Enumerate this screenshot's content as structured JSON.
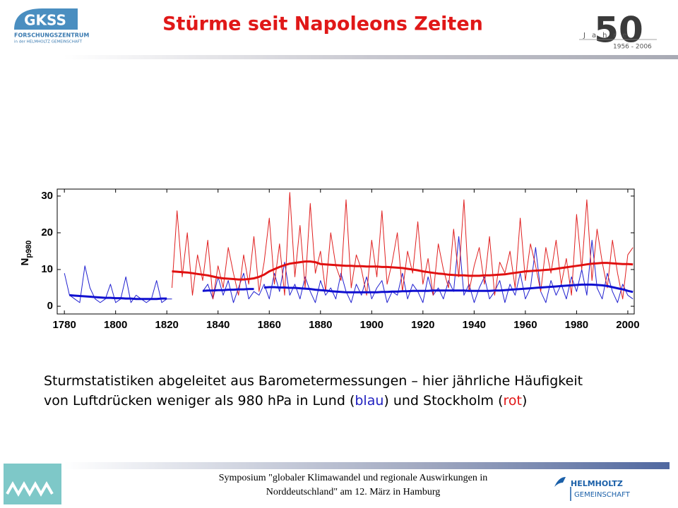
{
  "header": {
    "title": "Stürme seit Napoleons Zeiten",
    "logo_left": {
      "name": "GKSS",
      "line1": "FORSCHUNGSZENTRUM",
      "line2": "in der HELMHOLTZ GEMEINSCHAFT"
    },
    "logo_right": {
      "number": "50",
      "word": "Jahre",
      "years": "1956 - 2006"
    }
  },
  "chart_data": {
    "type": "line",
    "ylabel": "N",
    "ylabel_subscript": "p980",
    "x": [
      1780,
      1782,
      1784,
      1786,
      1788,
      1790,
      1792,
      1794,
      1796,
      1798,
      1800,
      1802,
      1804,
      1806,
      1808,
      1810,
      1812,
      1814,
      1816,
      1818,
      1820,
      1822,
      1824,
      1826,
      1828,
      1830,
      1832,
      1834,
      1836,
      1838,
      1840,
      1842,
      1844,
      1846,
      1848,
      1850,
      1852,
      1854,
      1856,
      1858,
      1860,
      1862,
      1864,
      1866,
      1868,
      1870,
      1872,
      1874,
      1876,
      1878,
      1880,
      1882,
      1884,
      1886,
      1888,
      1890,
      1892,
      1894,
      1896,
      1898,
      1900,
      1902,
      1904,
      1906,
      1908,
      1910,
      1912,
      1914,
      1916,
      1918,
      1920,
      1922,
      1924,
      1926,
      1928,
      1930,
      1932,
      1934,
      1936,
      1938,
      1940,
      1942,
      1944,
      1946,
      1948,
      1950,
      1952,
      1954,
      1956,
      1958,
      1960,
      1962,
      1964,
      1966,
      1968,
      1970,
      1972,
      1974,
      1976,
      1978,
      1980,
      1982,
      1984,
      1986,
      1988,
      1990,
      1992,
      1994,
      1996,
      1998,
      2000,
      2002
    ],
    "series": [
      {
        "color": "#2020d0",
        "width": 1,
        "values": [
          9,
          3,
          2,
          1,
          11,
          5,
          2,
          1,
          2,
          6,
          1,
          2,
          8,
          1,
          3,
          2,
          1,
          2,
          7,
          1,
          2,
          2,
          null,
          null,
          null,
          null,
          null,
          4,
          6,
          2,
          8,
          3,
          7,
          1,
          5,
          9,
          2,
          4,
          3,
          6,
          2,
          9,
          4,
          12,
          3,
          6,
          2,
          8,
          4,
          1,
          7,
          3,
          5,
          2,
          9,
          4,
          1,
          6,
          3,
          8,
          2,
          5,
          7,
          1,
          4,
          3,
          9,
          2,
          6,
          4,
          1,
          8,
          3,
          5,
          2,
          7,
          4,
          19,
          3,
          6,
          1,
          5,
          8,
          2,
          4,
          7,
          1,
          6,
          3,
          9,
          2,
          5,
          16,
          4,
          1,
          7,
          3,
          6,
          2,
          8,
          4,
          10,
          3,
          18,
          5,
          2,
          9,
          4,
          1,
          6,
          3,
          2
        ]
      },
      {
        "color": "#e02020",
        "width": 1,
        "values": [
          null,
          null,
          null,
          null,
          null,
          null,
          null,
          null,
          null,
          null,
          null,
          null,
          null,
          null,
          null,
          null,
          null,
          null,
          null,
          null,
          null,
          5,
          26,
          8,
          20,
          3,
          14,
          7,
          18,
          2,
          11,
          5,
          16,
          9,
          3,
          14,
          6,
          19,
          4,
          12,
          24,
          6,
          17,
          3,
          31,
          8,
          22,
          5,
          28,
          9,
          15,
          4,
          20,
          11,
          7,
          29,
          5,
          14,
          10,
          3,
          18,
          8,
          26,
          6,
          12,
          20,
          4,
          15,
          9,
          23,
          6,
          13,
          3,
          17,
          10,
          5,
          21,
          8,
          29,
          4,
          11,
          16,
          6,
          19,
          3,
          12,
          9,
          15,
          5,
          24,
          7,
          17,
          11,
          4,
          16,
          9,
          18,
          6,
          13,
          3,
          25,
          10,
          29,
          7,
          21,
          12,
          5,
          18,
          9,
          2,
          14,
          16
        ]
      },
      {
        "color": "#1010d0",
        "width": 3,
        "values": [
          null,
          3.0,
          2.9,
          2.8,
          2.7,
          2.6,
          2.5,
          2.4,
          2.3,
          2.3,
          2.2,
          2.2,
          2.1,
          2.1,
          2.0,
          2.0,
          2.0,
          2.0,
          2.0,
          2.1,
          2.1,
          null,
          null,
          null,
          null,
          null,
          null,
          4.2,
          4.3,
          4.3,
          4.4,
          4.4,
          4.5,
          4.5,
          4.6,
          4.6,
          4.7,
          4.7,
          null,
          5.1,
          5.2,
          5.2,
          5.1,
          5.1,
          5.0,
          5.0,
          4.9,
          4.8,
          4.7,
          4.5,
          4.4,
          4.3,
          4.1,
          4.0,
          3.9,
          3.8,
          3.8,
          3.8,
          3.8,
          3.8,
          3.8,
          3.8,
          3.9,
          3.9,
          4.0,
          4.0,
          4.1,
          4.1,
          4.2,
          4.2,
          4.2,
          4.2,
          4.3,
          4.3,
          4.3,
          4.3,
          4.3,
          4.3,
          4.3,
          4.2,
          4.2,
          4.2,
          4.2,
          4.2,
          4.3,
          4.3,
          4.4,
          4.5,
          4.6,
          4.7,
          4.8,
          4.9,
          5.0,
          5.1,
          5.2,
          5.3,
          5.4,
          5.5,
          5.6,
          5.7,
          5.8,
          5.9,
          5.9,
          5.9,
          5.8,
          5.7,
          5.5,
          5.2,
          4.9,
          4.6,
          4.2,
          3.9
        ]
      },
      {
        "color": "#e01010",
        "width": 3,
        "values": [
          null,
          null,
          null,
          null,
          null,
          null,
          null,
          null,
          null,
          null,
          null,
          null,
          null,
          null,
          null,
          null,
          null,
          null,
          null,
          null,
          null,
          9.5,
          9.4,
          9.3,
          9.2,
          9.0,
          8.8,
          8.6,
          8.4,
          8.1,
          7.8,
          7.6,
          7.5,
          7.4,
          7.3,
          7.3,
          7.4,
          7.6,
          8.0,
          8.6,
          9.5,
          10.1,
          10.7,
          11.2,
          11.6,
          11.8,
          12.0,
          12.2,
          12.2,
          12.0,
          11.5,
          11.4,
          11.3,
          11.2,
          11.1,
          11.0,
          11.0,
          10.9,
          10.9,
          10.8,
          10.8,
          10.8,
          10.7,
          10.7,
          10.6,
          10.5,
          10.4,
          10.2,
          10.0,
          9.8,
          9.5,
          9.3,
          9.1,
          8.9,
          8.8,
          8.6,
          8.5,
          8.4,
          8.4,
          8.3,
          8.3,
          8.3,
          8.4,
          8.4,
          8.5,
          8.6,
          8.7,
          8.9,
          9.1,
          9.3,
          9.5,
          9.6,
          9.7,
          9.8,
          9.9,
          10.0,
          10.2,
          10.4,
          10.6,
          10.8,
          11.0,
          11.2,
          11.4,
          11.6,
          11.7,
          11.8,
          11.8,
          11.7,
          11.6,
          11.5,
          11.5,
          11.4
        ]
      }
    ],
    "xlim": [
      1777.2,
      2002.5
    ],
    "ylim": [
      -2.1,
      31.9
    ],
    "xticks": [
      1780,
      1800,
      1820,
      1840,
      1860,
      1880,
      1900,
      1920,
      1940,
      1960,
      1980,
      2000
    ],
    "yticks": [
      0,
      10,
      20,
      30
    ]
  },
  "caption": [
    "Sturmstatistiken abgeleitet aus Barometermessungen – hier jährliche Häufigkeit von Luftdrücken weniger als 980 hPa in Lund (",
    "blau",
    ") und Stockholm (",
    "rot",
    ")"
  ],
  "footer": {
    "text": "Symposium \"globaler Klimawandel und regionale Auswirkungen in Norddeutschland\" am 12. März in Hamburg",
    "logo_right": {
      "line1": "HELMHOLTZ",
      "line2": "GEMEINSCHAFT"
    }
  }
}
